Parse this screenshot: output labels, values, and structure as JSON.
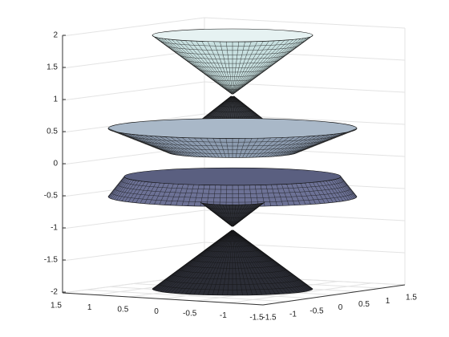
{
  "chart_data": {
    "type": "surface3d",
    "zlim": [
      -2,
      2
    ],
    "zticks": [
      -2,
      -1.5,
      -1,
      -0.5,
      0,
      0.5,
      1,
      1.5,
      2
    ],
    "xlim": [
      -1.5,
      1.5
    ],
    "xticks": [
      1.5,
      1,
      0.5,
      0,
      -0.5,
      -1,
      -1.5
    ],
    "ylim": [
      -1.5,
      1.5
    ],
    "yticks": [
      -1.5,
      -1,
      -0.5,
      0,
      0.5,
      1,
      1.5
    ],
    "grid": true
  }
}
